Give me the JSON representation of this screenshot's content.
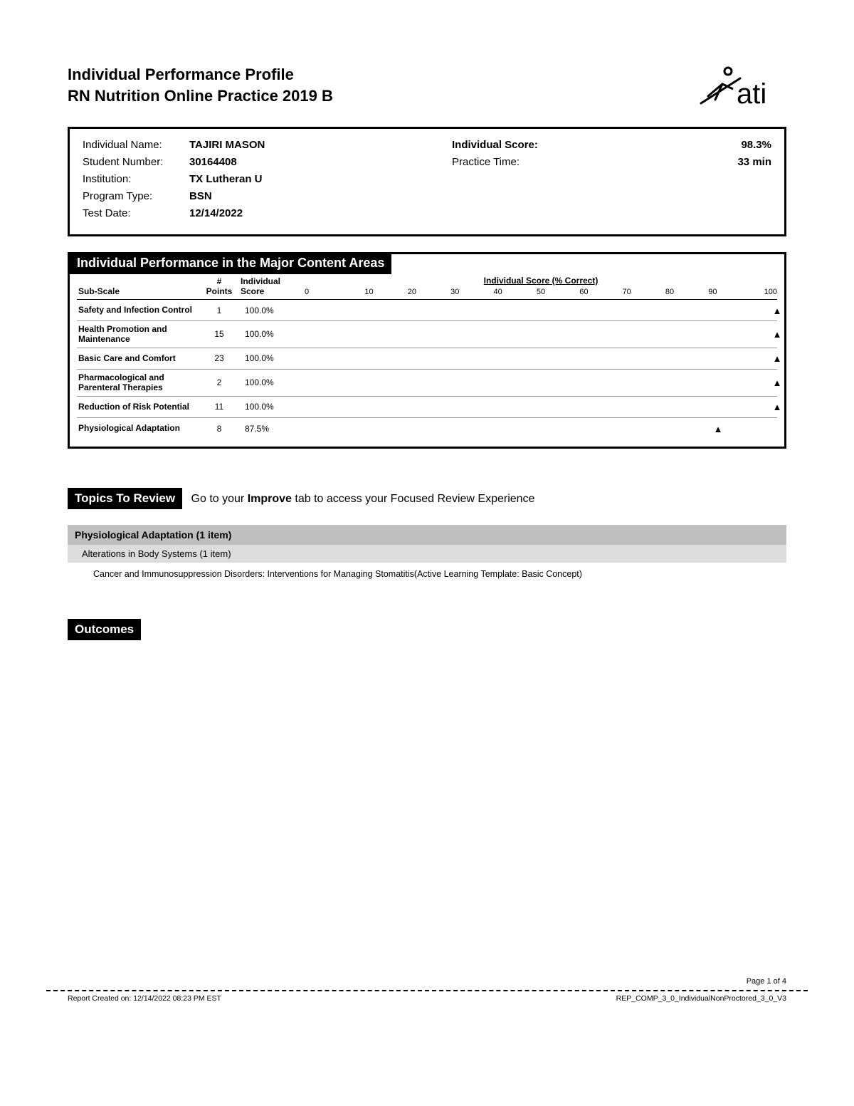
{
  "header": {
    "title1": "Individual Performance Profile",
    "title2": "RN Nutrition Online Practice 2019 B",
    "logo_text": "ati"
  },
  "info": {
    "left": [
      {
        "label": "Individual Name:",
        "value": "TAJIRI MASON"
      },
      {
        "label": "Student Number:",
        "value": "30164408"
      },
      {
        "label": "Institution:",
        "value": "TX Lutheran U"
      },
      {
        "label": "Program Type:",
        "value": "BSN"
      },
      {
        "label": "Test Date:",
        "value": "12/14/2022"
      }
    ],
    "right": [
      {
        "label": "Individual Score:",
        "value": "98.3%",
        "bold_label": true
      },
      {
        "label": "Practice Time:",
        "value": "33 min",
        "bold_label": false
      }
    ]
  },
  "content_areas": {
    "title": "Individual Performance in the Major Content Areas",
    "chart_title": "Individual Score (% Correct)",
    "columns": {
      "sub": "Sub-Scale",
      "pts_top": "#",
      "pts_bot": "Points",
      "score_top": "Individual",
      "score_bot": "Score"
    },
    "ticks": [
      "0",
      "10",
      "20",
      "30",
      "40",
      "50",
      "60",
      "70",
      "80",
      "90",
      "100"
    ],
    "rows": [
      {
        "name": "Safety and Infection Control",
        "points": "1",
        "score": "100.0%",
        "pct": 100
      },
      {
        "name": "Health Promotion and Maintenance",
        "points": "15",
        "score": "100.0%",
        "pct": 100
      },
      {
        "name": "Basic Care and Comfort",
        "points": "23",
        "score": "100.0%",
        "pct": 100
      },
      {
        "name": "Pharmacological and Parenteral Therapies",
        "points": "2",
        "score": "100.0%",
        "pct": 100
      },
      {
        "name": "Reduction of Risk Potential",
        "points": "11",
        "score": "100.0%",
        "pct": 100
      },
      {
        "name": "Physiological Adaptation",
        "points": "8",
        "score": "87.5%",
        "pct": 87.5
      }
    ]
  },
  "topics": {
    "pill": "Topics To Review",
    "desc_pre": "Go to your ",
    "desc_bold": "Improve",
    "desc_post": " tab to access your Focused Review Experience",
    "major": "Physiological Adaptation (1 item)",
    "sub": "Alterations in Body Systems (1 item)",
    "item": "Cancer and Immunosuppression Disorders: Interventions for Managing Stomatitis(Active Learning Template: Basic Concept)"
  },
  "outcomes": {
    "pill": "Outcomes"
  },
  "footer": {
    "page": "Page 1 of 4",
    "left": "Report Created on: 12/14/2022 08:23 PM EST",
    "right": "REP_COMP_3_0_IndividualNonProctored_3_0_V3"
  }
}
